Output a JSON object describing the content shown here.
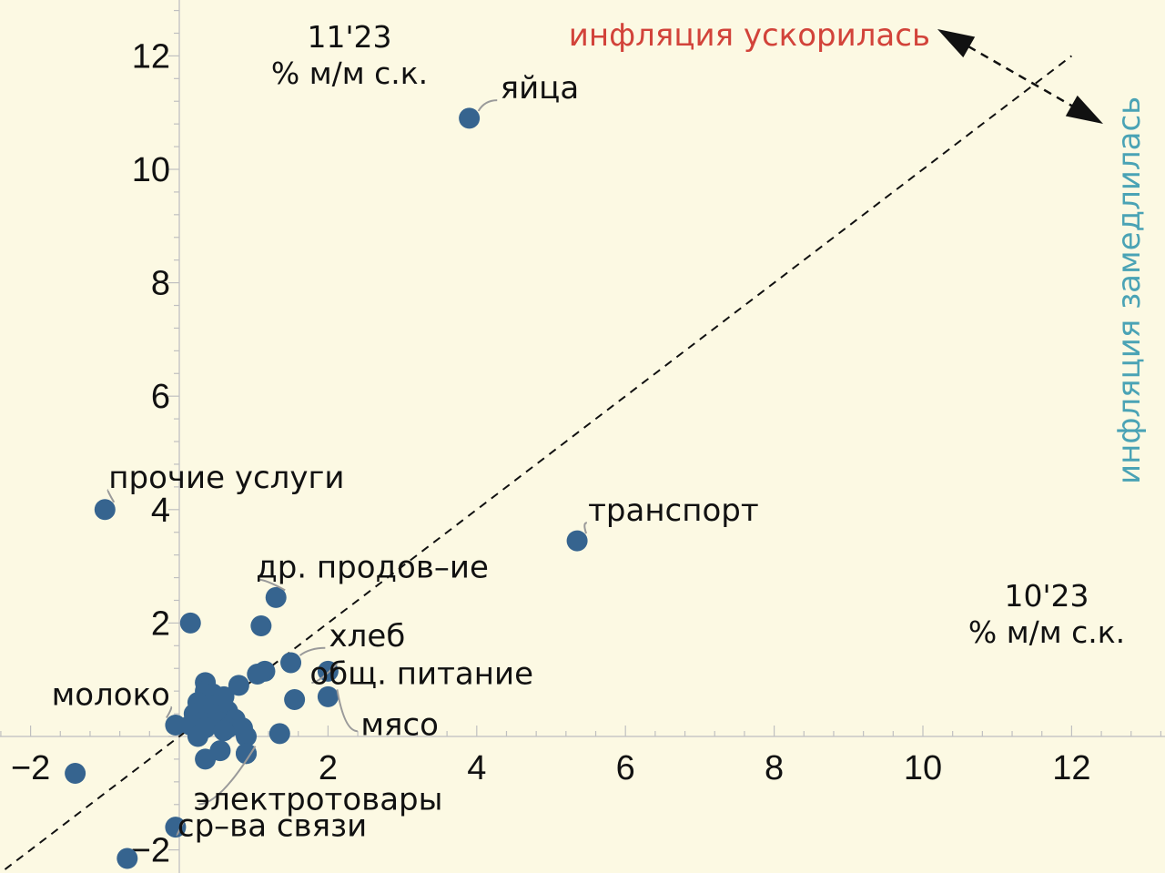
{
  "chart_data": {
    "type": "scatter",
    "xlim": [
      -2.5,
      13.3
    ],
    "ylim": [
      -2.3,
      13.0
    ],
    "x_ticks": [
      -2,
      2,
      4,
      6,
      8,
      10,
      12
    ],
    "y_ticks": [
      -2,
      2,
      4,
      6,
      8,
      10,
      12
    ],
    "x_tick_labels": [
      "−2",
      "2",
      "4",
      "6",
      "8",
      "10",
      "12"
    ],
    "y_tick_labels": [
      "−2",
      "2",
      "4",
      "6",
      "8",
      "10",
      "12"
    ],
    "x_period": {
      "line1": "10'23",
      "line2": "% м/м с.к."
    },
    "y_period": {
      "line1": "11'23",
      "line2": "% м/м с.к."
    },
    "annotation_up": "инфляция ускорилась",
    "annotation_down": "инфляция замедлилась",
    "diagonal_reference": "y = x",
    "colors": {
      "point": "#36648f",
      "up": "#d2433a",
      "down": "#4aa3b5",
      "background": "#fcf9e3"
    },
    "labeled_points": [
      {
        "name": "яйца",
        "x": 3.9,
        "y": 10.9
      },
      {
        "name": "прочие услуги",
        "x": -1.0,
        "y": 4.0
      },
      {
        "name": "транспорт",
        "x": 5.35,
        "y": 3.45
      },
      {
        "name": "др. продов–ие",
        "x": 1.3,
        "y": 2.45
      },
      {
        "name": "хлеб",
        "x": 1.5,
        "y": 1.3
      },
      {
        "name": "общ. питание",
        "x": 2.0,
        "y": 1.15
      },
      {
        "name": "мясо",
        "x": 2.0,
        "y": 0.7
      },
      {
        "name": "молоко",
        "x": -0.05,
        "y": 0.2
      },
      {
        "name": "электротовары",
        "x": 0.9,
        "y": -0.3
      },
      {
        "name": "ср–ва связи",
        "x": -0.05,
        "y": -1.6
      }
    ],
    "other_points": [
      {
        "x": 0.15,
        "y": 2.0
      },
      {
        "x": 1.1,
        "y": 1.95
      },
      {
        "x": 1.15,
        "y": 1.15
      },
      {
        "x": 1.05,
        "y": 1.1
      },
      {
        "x": 0.35,
        "y": 0.95
      },
      {
        "x": 0.35,
        "y": 0.8
      },
      {
        "x": 0.45,
        "y": 0.75
      },
      {
        "x": 0.6,
        "y": 0.7
      },
      {
        "x": 0.8,
        "y": 0.9
      },
      {
        "x": 0.25,
        "y": 0.6
      },
      {
        "x": 0.5,
        "y": 0.55
      },
      {
        "x": 0.2,
        "y": 0.4
      },
      {
        "x": 0.4,
        "y": 0.4
      },
      {
        "x": 0.65,
        "y": 0.45
      },
      {
        "x": 0.3,
        "y": 0.25
      },
      {
        "x": 0.55,
        "y": 0.25
      },
      {
        "x": 0.75,
        "y": 0.3
      },
      {
        "x": 0.15,
        "y": 0.2
      },
      {
        "x": 0.35,
        "y": 0.15
      },
      {
        "x": 0.65,
        "y": 0.15
      },
      {
        "x": 0.85,
        "y": 0.15
      },
      {
        "x": 0.9,
        "y": 0.0
      },
      {
        "x": 0.25,
        "y": 0.0
      },
      {
        "x": 0.6,
        "y": 0.1
      },
      {
        "x": 1.35,
        "y": 0.05
      },
      {
        "x": 1.55,
        "y": 0.65
      },
      {
        "x": 0.55,
        "y": -0.25
      },
      {
        "x": 0.35,
        "y": -0.4
      },
      {
        "x": 0.9,
        "y": -0.3
      },
      {
        "x": -1.4,
        "y": -0.65
      },
      {
        "x": -0.7,
        "y": -2.15
      }
    ]
  }
}
